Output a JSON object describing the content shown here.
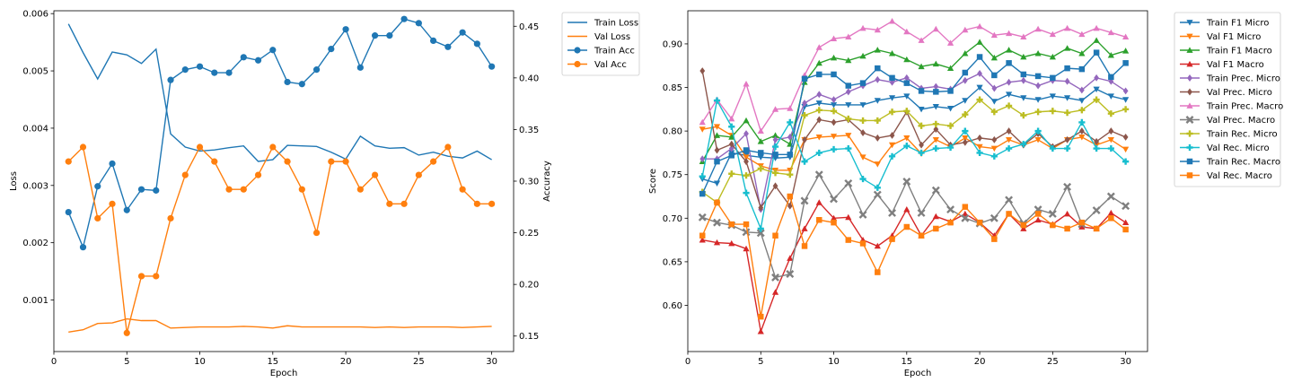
{
  "chart_data": [
    {
      "type": "line",
      "xlabel": "Epoch",
      "ylabel": "Loss",
      "y2label": "Accuracy",
      "xlim": [
        0,
        31.5
      ],
      "ylim": [
        0.0001,
        0.00605
      ],
      "y2lim": [
        0.135,
        0.465
      ],
      "xticks": [
        0,
        5,
        10,
        15,
        20,
        25,
        30
      ],
      "yticks": [
        0.001,
        0.002,
        0.003,
        0.004,
        0.005,
        0.006
      ],
      "y2ticks": [
        0.15,
        0.2,
        0.25,
        0.3,
        0.35,
        0.4,
        0.45
      ],
      "x": [
        1,
        2,
        3,
        4,
        5,
        6,
        7,
        8,
        9,
        10,
        11,
        12,
        13,
        14,
        15,
        16,
        17,
        18,
        19,
        20,
        21,
        22,
        23,
        24,
        25,
        26,
        27,
        28,
        29,
        30
      ],
      "legend_placement": "outside-top-right",
      "series": [
        {
          "name": "Train Loss",
          "axis": "left",
          "color": "#1f77b4",
          "marker": "none",
          "values": [
            0.00582,
            0.00532,
            0.00486,
            0.00533,
            0.00528,
            0.00513,
            0.00538,
            0.0039,
            0.00367,
            0.0036,
            0.00362,
            0.00366,
            0.00369,
            0.00342,
            0.00345,
            0.0037,
            0.00369,
            0.00368,
            0.00358,
            0.00346,
            0.00386,
            0.00369,
            0.00365,
            0.00366,
            0.00353,
            0.00358,
            0.00351,
            0.00348,
            0.0036,
            0.00345
          ]
        },
        {
          "name": "Val Loss",
          "axis": "left",
          "color": "#ff7f0e",
          "marker": "none",
          "values": [
            0.00044,
            0.00048,
            0.00059,
            0.0006,
            0.00067,
            0.00064,
            0.00064,
            0.00051,
            0.00052,
            0.00053,
            0.00053,
            0.00053,
            0.00054,
            0.00053,
            0.00051,
            0.00055,
            0.00053,
            0.00053,
            0.00053,
            0.00053,
            0.00053,
            0.00052,
            0.00053,
            0.00052,
            0.00053,
            0.00053,
            0.00053,
            0.00052,
            0.00053,
            0.00054
          ]
        },
        {
          "name": "Train Acc",
          "axis": "right",
          "color": "#1f77b4",
          "marker": "circle",
          "values": [
            0.27,
            0.236,
            0.295,
            0.317,
            0.272,
            0.292,
            0.291,
            0.398,
            0.408,
            0.411,
            0.405,
            0.405,
            0.42,
            0.417,
            0.427,
            0.396,
            0.394,
            0.408,
            0.428,
            0.447,
            0.41,
            0.441,
            0.441,
            0.457,
            0.453,
            0.436,
            0.43,
            0.444,
            0.433,
            0.411
          ]
        },
        {
          "name": "Val Acc",
          "axis": "right",
          "color": "#ff7f0e",
          "marker": "circle",
          "values": [
            0.319,
            0.333,
            0.264,
            0.278,
            0.153,
            0.208,
            0.208,
            0.264,
            0.306,
            0.333,
            0.319,
            0.292,
            0.292,
            0.306,
            0.333,
            0.319,
            0.292,
            0.25,
            0.319,
            0.319,
            0.292,
            0.306,
            0.278,
            0.278,
            0.306,
            0.319,
            0.333,
            0.292,
            0.278,
            0.278
          ]
        }
      ]
    },
    {
      "type": "line",
      "xlabel": "Epoch",
      "ylabel": "Score",
      "xlim": [
        0,
        31.5
      ],
      "ylim": [
        0.547,
        0.938
      ],
      "xticks": [
        0,
        5,
        10,
        15,
        20,
        25,
        30
      ],
      "yticks": [
        0.6,
        0.65,
        0.7,
        0.75,
        0.8,
        0.85,
        0.9
      ],
      "x": [
        1,
        2,
        3,
        4,
        5,
        6,
        7,
        8,
        9,
        10,
        11,
        12,
        13,
        14,
        15,
        16,
        17,
        18,
        19,
        20,
        21,
        22,
        23,
        24,
        25,
        26,
        27,
        28,
        29,
        30
      ],
      "legend_placement": "outside-top-right",
      "series": [
        {
          "name": "Train F1 Micro",
          "color": "#1f77b4",
          "marker": "tri-down",
          "values": [
            0.745,
            0.74,
            0.775,
            0.772,
            0.77,
            0.769,
            0.77,
            0.828,
            0.832,
            0.83,
            0.83,
            0.83,
            0.835,
            0.838,
            0.84,
            0.825,
            0.828,
            0.826,
            0.835,
            0.85,
            0.834,
            0.842,
            0.838,
            0.836,
            0.84,
            0.838,
            0.835,
            0.848,
            0.84,
            0.836
          ]
        },
        {
          "name": "Val F1 Micro",
          "color": "#ff7f0e",
          "marker": "tri-down",
          "values": [
            0.802,
            0.805,
            0.795,
            0.77,
            0.76,
            0.755,
            0.755,
            0.79,
            0.793,
            0.794,
            0.795,
            0.77,
            0.762,
            0.784,
            0.792,
            0.774,
            0.79,
            0.782,
            0.792,
            0.782,
            0.78,
            0.79,
            0.784,
            0.79,
            0.78,
            0.79,
            0.793,
            0.784,
            0.79,
            0.779
          ]
        },
        {
          "name": "Train F1 Macro",
          "color": "#2ca02c",
          "marker": "tri-up",
          "values": [
            0.765,
            0.795,
            0.793,
            0.812,
            0.788,
            0.795,
            0.785,
            0.856,
            0.878,
            0.884,
            0.881,
            0.886,
            0.893,
            0.889,
            0.882,
            0.874,
            0.877,
            0.872,
            0.889,
            0.902,
            0.884,
            0.893,
            0.885,
            0.889,
            0.885,
            0.895,
            0.889,
            0.904,
            0.887,
            0.892
          ]
        },
        {
          "name": "Val F1 Macro",
          "color": "#d62728",
          "marker": "tri-up",
          "values": [
            0.675,
            0.672,
            0.671,
            0.665,
            0.57,
            0.615,
            0.654,
            0.688,
            0.718,
            0.7,
            0.701,
            0.675,
            0.668,
            0.68,
            0.71,
            0.68,
            0.702,
            0.696,
            0.705,
            0.695,
            0.68,
            0.705,
            0.688,
            0.698,
            0.693,
            0.705,
            0.69,
            0.688,
            0.706,
            0.695
          ]
        },
        {
          "name": "Train Prec. Micro",
          "color": "#9467bd",
          "marker": "diamond",
          "values": [
            0.768,
            0.768,
            0.78,
            0.797,
            0.71,
            0.79,
            0.793,
            0.832,
            0.842,
            0.836,
            0.845,
            0.852,
            0.859,
            0.856,
            0.861,
            0.849,
            0.851,
            0.848,
            0.858,
            0.866,
            0.849,
            0.856,
            0.858,
            0.852,
            0.858,
            0.857,
            0.847,
            0.861,
            0.857,
            0.846
          ]
        },
        {
          "name": "Val Prec. Micro",
          "color": "#8c564b",
          "marker": "diamond",
          "values": [
            0.869,
            0.778,
            0.785,
            0.765,
            0.712,
            0.737,
            0.714,
            0.79,
            0.813,
            0.81,
            0.813,
            0.798,
            0.792,
            0.795,
            0.822,
            0.784,
            0.802,
            0.784,
            0.787,
            0.792,
            0.79,
            0.8,
            0.784,
            0.797,
            0.782,
            0.79,
            0.8,
            0.788,
            0.8,
            0.793
          ]
        },
        {
          "name": "Train Prec. Macro",
          "color": "#e377c2",
          "marker": "triangle",
          "values": [
            0.81,
            0.836,
            0.814,
            0.854,
            0.8,
            0.825,
            0.826,
            0.864,
            0.896,
            0.906,
            0.908,
            0.918,
            0.916,
            0.926,
            0.914,
            0.904,
            0.917,
            0.901,
            0.916,
            0.92,
            0.91,
            0.912,
            0.908,
            0.917,
            0.911,
            0.918,
            0.911,
            0.918,
            0.913,
            0.908
          ]
        },
        {
          "name": "Val Prec. Macro",
          "color": "#7f7f7f",
          "marker": "x",
          "values": [
            0.701,
            0.695,
            0.692,
            0.684,
            0.683,
            0.632,
            0.636,
            0.72,
            0.75,
            0.722,
            0.74,
            0.704,
            0.727,
            0.706,
            0.742,
            0.706,
            0.732,
            0.71,
            0.7,
            0.694,
            0.7,
            0.721,
            0.694,
            0.71,
            0.705,
            0.736,
            0.693,
            0.709,
            0.725,
            0.714
          ]
        },
        {
          "name": "Train Rec. Micro",
          "color": "#bcbd22",
          "marker": "plus",
          "values": [
            0.73,
            0.718,
            0.751,
            0.749,
            0.757,
            0.752,
            0.75,
            0.818,
            0.824,
            0.823,
            0.814,
            0.812,
            0.812,
            0.822,
            0.823,
            0.806,
            0.808,
            0.806,
            0.819,
            0.836,
            0.822,
            0.829,
            0.818,
            0.822,
            0.823,
            0.821,
            0.824,
            0.836,
            0.82,
            0.825
          ]
        },
        {
          "name": "Val Rec. Micro",
          "color": "#17becf",
          "marker": "plus",
          "values": [
            0.748,
            0.835,
            0.805,
            0.729,
            0.688,
            0.782,
            0.81,
            0.765,
            0.775,
            0.779,
            0.78,
            0.745,
            0.735,
            0.771,
            0.783,
            0.775,
            0.78,
            0.781,
            0.8,
            0.775,
            0.771,
            0.78,
            0.785,
            0.8,
            0.78,
            0.78,
            0.81,
            0.78,
            0.78,
            0.765
          ]
        },
        {
          "name": "Train Rec. Macro",
          "color": "#1f77b4",
          "marker": "square",
          "values": [
            0.728,
            0.765,
            0.772,
            0.778,
            0.775,
            0.773,
            0.773,
            0.86,
            0.865,
            0.865,
            0.852,
            0.855,
            0.872,
            0.861,
            0.855,
            0.846,
            0.845,
            0.846,
            0.867,
            0.885,
            0.864,
            0.878,
            0.865,
            0.863,
            0.861,
            0.872,
            0.871,
            0.89,
            0.862,
            0.878
          ]
        },
        {
          "name": "Val Rec. Macro",
          "color": "#ff7f0e",
          "marker": "square",
          "values": [
            0.68,
            0.718,
            0.693,
            0.693,
            0.587,
            0.68,
            0.725,
            0.668,
            0.698,
            0.695,
            0.675,
            0.671,
            0.638,
            0.676,
            0.69,
            0.68,
            0.688,
            0.695,
            0.713,
            0.695,
            0.676,
            0.705,
            0.692,
            0.705,
            0.692,
            0.688,
            0.695,
            0.688,
            0.7,
            0.687
          ]
        }
      ]
    }
  ]
}
